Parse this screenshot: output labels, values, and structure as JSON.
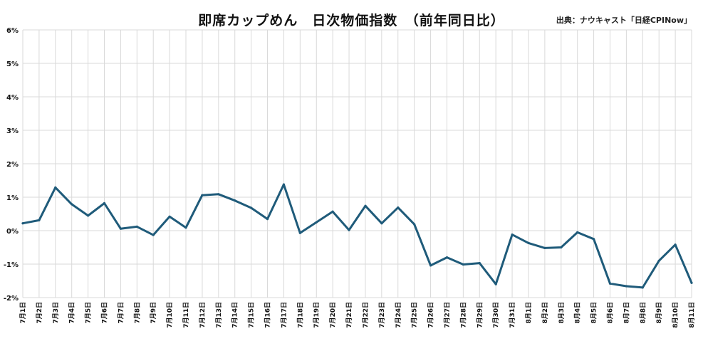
{
  "chart_data": {
    "type": "line",
    "title": "即席カップめん　日次物価指数　（前年同日比）",
    "source": "出典：ナウキャスト「日経CPINow」",
    "ylim": [
      -2,
      6
    ],
    "y_ticks": [
      "6%",
      "5%",
      "4%",
      "3%",
      "2%",
      "1%",
      "0%",
      "-1%",
      "-2%"
    ],
    "y_tick_values": [
      6,
      5,
      4,
      3,
      2,
      1,
      0,
      -1,
      -2
    ],
    "grid": true,
    "legend": "none",
    "categories": [
      "7月1日",
      "7月2日",
      "7月3日",
      "7月4日",
      "7月5日",
      "7月6日",
      "7月7日",
      "7月8日",
      "7月9日",
      "7月10日",
      "7月11日",
      "7月12日",
      "7月13日",
      "7月14日",
      "7月15日",
      "7月16日",
      "7月17日",
      "7月18日",
      "7月19日",
      "7月20日",
      "7月21日",
      "7月22日",
      "7月23日",
      "7月24日",
      "7月25日",
      "7月26日",
      "7月27日",
      "7月28日",
      "7月29日",
      "7月30日",
      "7月31日",
      "8月1日",
      "8月2日",
      "8月3日",
      "8月4日",
      "8月5日",
      "8月6日",
      "8月7日",
      "8月8日",
      "8月9日",
      "8月10日",
      "8月11日"
    ],
    "series": [
      {
        "values": [
          0.22,
          0.31,
          1.29,
          0.79,
          0.45,
          0.82,
          0.06,
          0.12,
          -0.13,
          0.42,
          0.09,
          1.06,
          1.09,
          0.9,
          0.68,
          0.35,
          1.38,
          -0.07,
          0.25,
          0.57,
          0.02,
          0.74,
          0.22,
          0.69,
          0.19,
          -1.04,
          -0.8,
          -1.01,
          -0.97,
          -1.6,
          -0.12,
          -0.37,
          -0.52,
          -0.5,
          -0.05,
          -0.25,
          -1.58,
          -1.66,
          -1.7,
          -0.9,
          -0.42,
          -1.56
        ],
        "color": "#1f5b7a"
      }
    ]
  }
}
